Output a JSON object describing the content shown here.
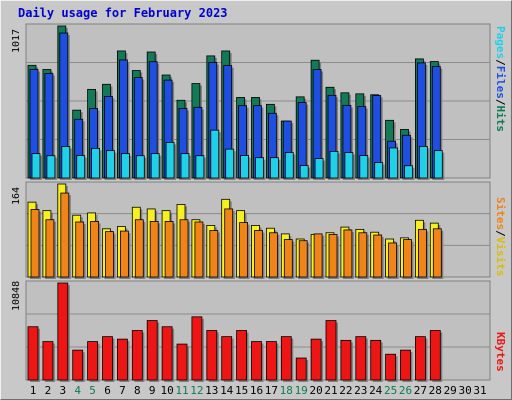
{
  "title": "Daily usage for February 2023",
  "colors": {
    "hits": "#127a56",
    "files": "#1e4fe0",
    "pages": "#20d0e8",
    "visits": "#f7f020",
    "sites": "#f08418",
    "kbytes": "#ee1515",
    "weekend": "#0e7a50",
    "weekday": "#000000",
    "title": "#0000d0"
  },
  "right_labels": {
    "panel1": [
      {
        "text": "Pages",
        "color": "#20d0e8"
      },
      {
        "text": "/",
        "color": "#000000"
      },
      {
        "text": "Files",
        "color": "#1e4fe0"
      },
      {
        "text": "/",
        "color": "#000000"
      },
      {
        "text": "Hits",
        "color": "#127a56"
      }
    ],
    "panel2": [
      {
        "text": "Sites",
        "color": "#f08418"
      },
      {
        "text": "/",
        "color": "#000000"
      },
      {
        "text": "Visits",
        "color": "#f7f020"
      }
    ],
    "panel3": [
      {
        "text": "KBytes",
        "color": "#ee1515"
      }
    ]
  },
  "chart_data": [
    {
      "type": "bar",
      "panel": "hits-files-pages",
      "ymax_label": "1017",
      "ylim": [
        0,
        1017
      ],
      "grid": true,
      "categories": [
        "1",
        "2",
        "3",
        "4",
        "5",
        "6",
        "7",
        "8",
        "9",
        "10",
        "11",
        "12",
        "13",
        "14",
        "15",
        "16",
        "17",
        "18",
        "19",
        "20",
        "21",
        "22",
        "23",
        "24",
        "25",
        "26",
        "27",
        "28"
      ],
      "series": [
        {
          "name": "Hits",
          "values": [
            754,
            726,
            1017,
            454,
            593,
            627,
            850,
            719,
            843,
            689,
            520,
            632,
            817,
            850,
            539,
            539,
            493,
            381,
            543,
            788,
            607,
            570,
            563,
            557,
            386,
            325,
            797,
            779
          ]
        },
        {
          "name": "Files",
          "values": [
            726,
            699,
            970,
            393,
            465,
            546,
            790,
            672,
            778,
            655,
            465,
            473,
            773,
            752,
            484,
            484,
            433,
            381,
            505,
            726,
            553,
            486,
            478,
            552,
            246,
            286,
            770,
            746
          ]
        },
        {
          "name": "Pages",
          "values": [
            163,
            149,
            211,
            150,
            198,
            183,
            163,
            149,
            163,
            238,
            163,
            149,
            320,
            193,
            150,
            136,
            136,
            170,
            83,
            130,
            178,
            170,
            150,
            103,
            201,
            82,
            211,
            183
          ]
        }
      ]
    },
    {
      "type": "bar",
      "panel": "visits-sites",
      "ymax_label": "164",
      "ylim": [
        0,
        164
      ],
      "grid": true,
      "categories": [
        "1",
        "2",
        "3",
        "4",
        "5",
        "6",
        "7",
        "8",
        "9",
        "10",
        "11",
        "12",
        "13",
        "14",
        "15",
        "16",
        "17",
        "18",
        "19",
        "20",
        "21",
        "22",
        "23",
        "24",
        "25",
        "26",
        "27",
        "28"
      ],
      "series": [
        {
          "name": "Visits",
          "values": [
            132,
            117,
            164,
            109,
            113,
            85,
            89,
            123,
            120,
            117,
            128,
            101,
            91,
            137,
            117,
            91,
            86,
            76,
            67,
            75,
            78,
            88,
            84,
            79,
            67,
            69,
            100,
            95
          ]
        },
        {
          "name": "Sites",
          "values": [
            119,
            101,
            148,
            97,
            98,
            80,
            81,
            101,
            98,
            98,
            101,
            97,
            82,
            120,
            96,
            82,
            78,
            66,
            64,
            76,
            75,
            83,
            78,
            74,
            60,
            66,
            84,
            85
          ]
        }
      ]
    },
    {
      "type": "bar",
      "panel": "kbytes",
      "ymax_label": "10848",
      "ylim": [
        0,
        10848
      ],
      "grid": true,
      "categories": [
        "1",
        "2",
        "3",
        "4",
        "5",
        "6",
        "7",
        "8",
        "9",
        "10",
        "11",
        "12",
        "13",
        "14",
        "15",
        "16",
        "17",
        "18",
        "19",
        "20",
        "21",
        "22",
        "23",
        "24",
        "25",
        "26",
        "27",
        "28"
      ],
      "series": [
        {
          "name": "KBytes",
          "values": [
            5958,
            4299,
            10848,
            3339,
            4299,
            4850,
            4570,
            5535,
            6649,
            5958,
            4016,
            7065,
            5535,
            4850,
            5535,
            4299,
            4299,
            4850,
            2456,
            4570,
            6649,
            4434,
            4850,
            4434,
            2881,
            3339,
            4850,
            5535
          ]
        }
      ]
    }
  ],
  "x_axis": {
    "labels": [
      "1",
      "2",
      "3",
      "4",
      "5",
      "6",
      "7",
      "8",
      "9",
      "10",
      "11",
      "12",
      "13",
      "14",
      "15",
      "16",
      "17",
      "18",
      "19",
      "20",
      "21",
      "22",
      "23",
      "24",
      "25",
      "26",
      "27",
      "28",
      "29",
      "30",
      "31"
    ],
    "weekend": [
      4,
      5,
      11,
      12,
      18,
      19,
      25,
      26
    ]
  }
}
